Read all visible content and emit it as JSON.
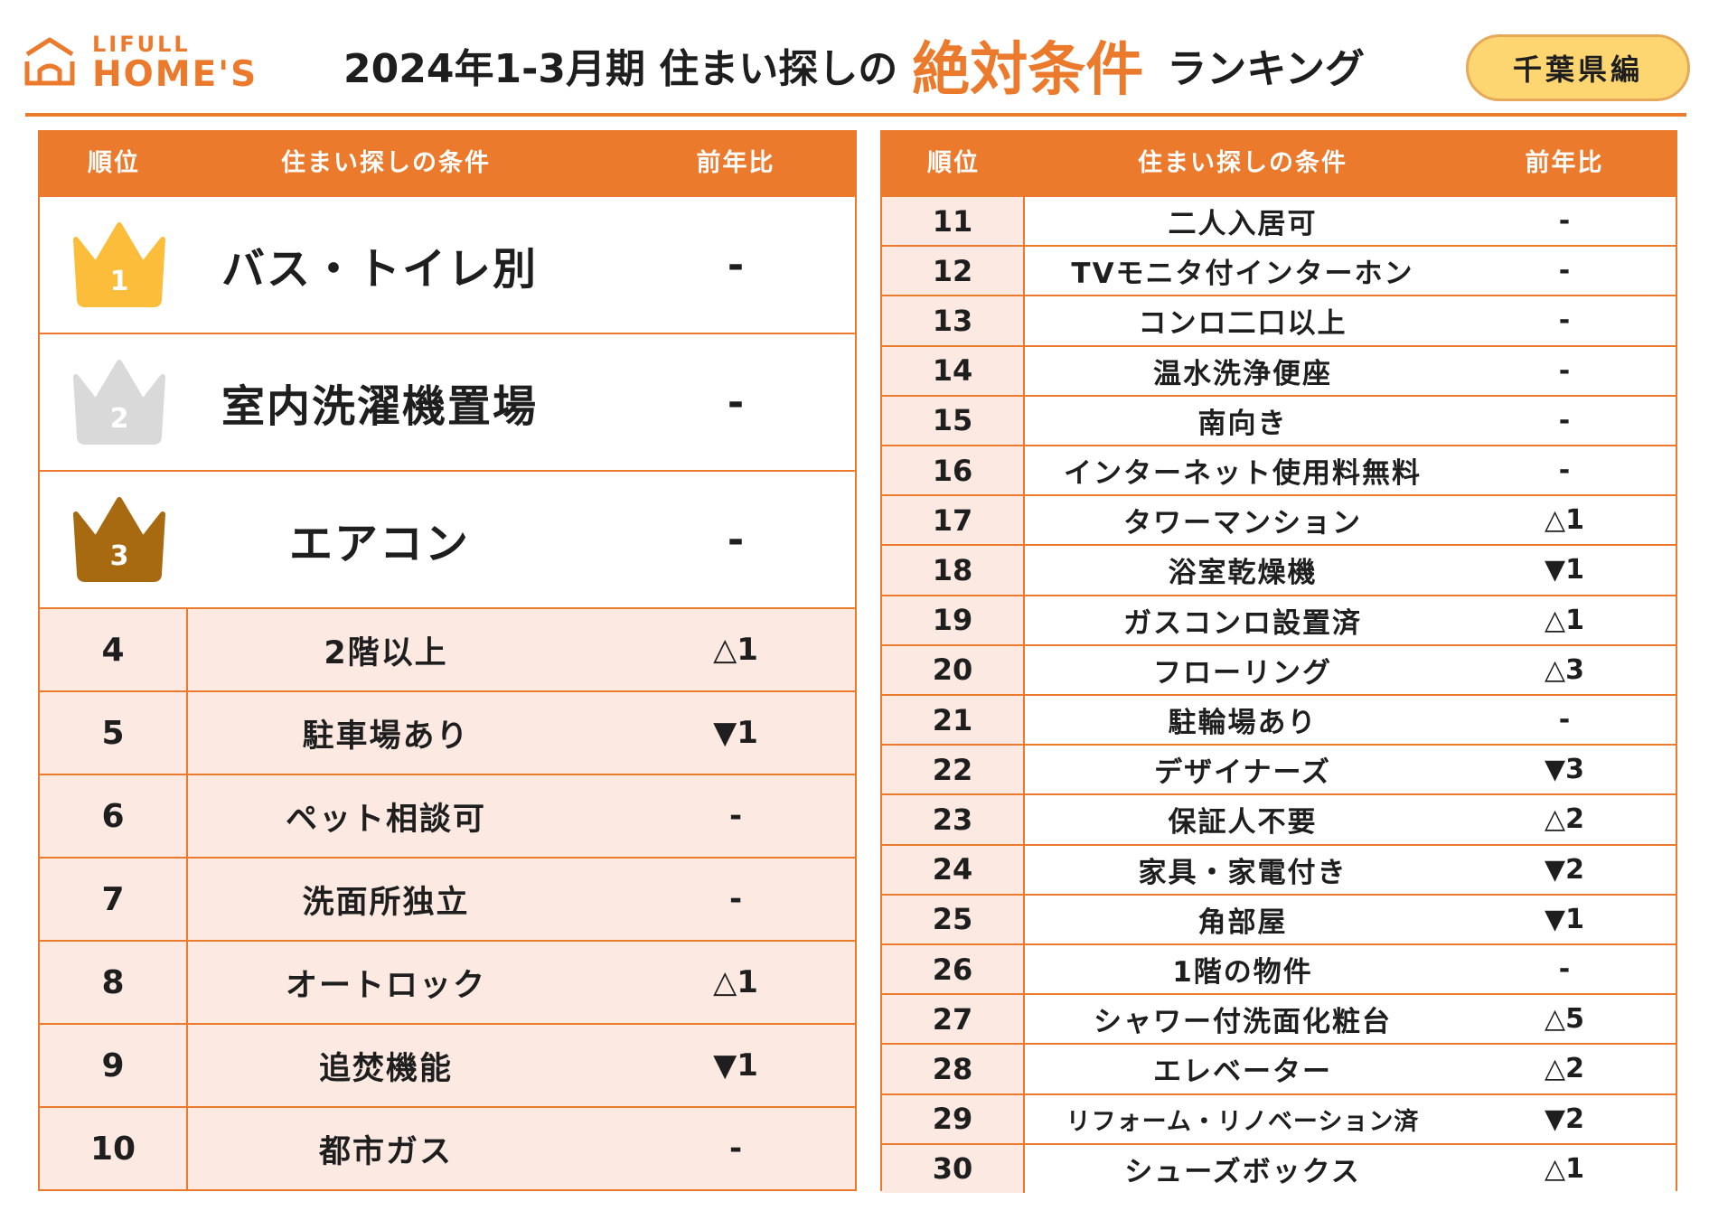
{
  "logo": {
    "small_text": "LIFULL",
    "big_text": "HOME'S"
  },
  "title": {
    "prefix": "2024年1-3月期 住まい探しの",
    "highlight": "絶対条件",
    "suffix": "ランキング"
  },
  "region_badge": "千葉県編",
  "colors": {
    "accent": "#ec7a2d",
    "row_tint": "#fbe9e2",
    "badge": "#fdd571",
    "gold": "#fbbd3a",
    "silver": "#d9d9d9",
    "bronze": "#a86a10"
  },
  "headers": {
    "rank": "順位",
    "condition": "住まい探しの条件",
    "yoy": "前年比"
  },
  "top3": [
    {
      "rank": "1",
      "condition": "バス・トイレ別",
      "yoy": "-",
      "icon": "crown-gold-icon"
    },
    {
      "rank": "2",
      "condition": "室内洗濯機置場",
      "yoy": "-",
      "icon": "crown-silver-icon"
    },
    {
      "rank": "3",
      "condition": "エアコン",
      "yoy": "-",
      "icon": "crown-bronze-icon"
    }
  ],
  "left_rows": [
    {
      "rank": "4",
      "condition": "2階以上",
      "yoy": "△1"
    },
    {
      "rank": "5",
      "condition": "駐車場あり",
      "yoy": "▼1"
    },
    {
      "rank": "6",
      "condition": "ペット相談可",
      "yoy": "-"
    },
    {
      "rank": "7",
      "condition": "洗面所独立",
      "yoy": "-"
    },
    {
      "rank": "8",
      "condition": "オートロック",
      "yoy": "△1"
    },
    {
      "rank": "9",
      "condition": "追焚機能",
      "yoy": "▼1"
    },
    {
      "rank": "10",
      "condition": "都市ガス",
      "yoy": "-"
    }
  ],
  "right_rows": [
    {
      "rank": "11",
      "condition": "二人入居可",
      "yoy": "-"
    },
    {
      "rank": "12",
      "condition": "TVモニタ付インターホン",
      "yoy": "-"
    },
    {
      "rank": "13",
      "condition": "コンロ二口以上",
      "yoy": "-"
    },
    {
      "rank": "14",
      "condition": "温水洗浄便座",
      "yoy": "-"
    },
    {
      "rank": "15",
      "condition": "南向き",
      "yoy": "-"
    },
    {
      "rank": "16",
      "condition": "インターネット使用料無料",
      "yoy": "-"
    },
    {
      "rank": "17",
      "condition": "タワーマンション",
      "yoy": "△1"
    },
    {
      "rank": "18",
      "condition": "浴室乾燥機",
      "yoy": "▼1"
    },
    {
      "rank": "19",
      "condition": "ガスコンロ設置済",
      "yoy": "△1"
    },
    {
      "rank": "20",
      "condition": "フローリング",
      "yoy": "△3"
    },
    {
      "rank": "21",
      "condition": "駐輪場あり",
      "yoy": "-"
    },
    {
      "rank": "22",
      "condition": "デザイナーズ",
      "yoy": "▼3"
    },
    {
      "rank": "23",
      "condition": "保証人不要",
      "yoy": "△2"
    },
    {
      "rank": "24",
      "condition": "家具・家電付き",
      "yoy": "▼2"
    },
    {
      "rank": "25",
      "condition": "角部屋",
      "yoy": "▼1"
    },
    {
      "rank": "26",
      "condition": "1階の物件",
      "yoy": "-"
    },
    {
      "rank": "27",
      "condition": "シャワー付洗面化粧台",
      "yoy": "△5"
    },
    {
      "rank": "28",
      "condition": "エレベーター",
      "yoy": "△2"
    },
    {
      "rank": "29",
      "condition": "リフォーム・リノベーション済",
      "yoy": "▼2"
    },
    {
      "rank": "30",
      "condition": "シューズボックス",
      "yoy": "△1"
    }
  ]
}
